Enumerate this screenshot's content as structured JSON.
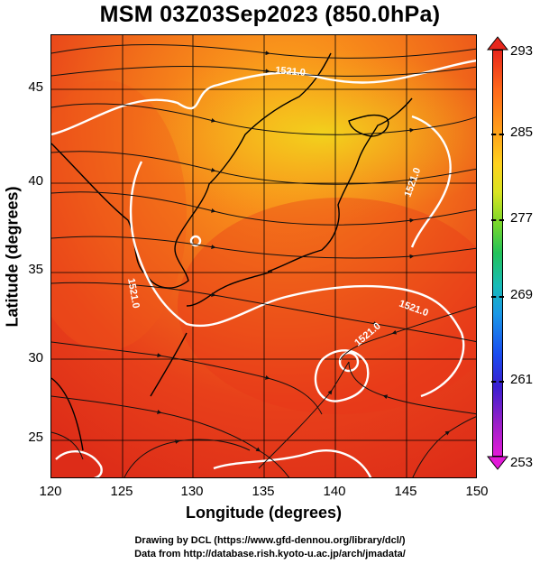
{
  "title": "MSM 03Z03Sep2023 (850.0hPa)",
  "axes": {
    "xlabel": "Longitude (degrees)",
    "ylabel": "Latitude  (degrees)",
    "xticks": [
      "120",
      "125",
      "130",
      "135",
      "140",
      "145",
      "150"
    ],
    "yticks": [
      "45",
      "40",
      "35",
      "30",
      "25"
    ]
  },
  "map": {
    "lon_range": [
      120,
      150
    ],
    "lat_range": [
      22.4,
      47.6
    ],
    "contour_labels": [
      "1521.0",
      "1521.0",
      "1521.0",
      "1521.0",
      "1521.0"
    ],
    "field": "temperature (K), color shaded",
    "overlay": "wind streamlines"
  },
  "colorbar": {
    "ticks": [
      "293",
      "285",
      "277",
      "269",
      "261",
      "253"
    ],
    "range": [
      253,
      293
    ],
    "colors": [
      "#e8271c",
      "#ffa01a",
      "#ffd21e",
      "#74d62c",
      "#22c25a",
      "#18bcb8",
      "#1a98e6",
      "#1a4cf0",
      "#9a20c8",
      "#e21ad8"
    ]
  },
  "credits": {
    "drawing": "Drawing by DCL (https://www.gfd-dennou.org/library/dcl/)",
    "data": "Data from http://database.rish.kyoto-u.ac.jp/arch/jmadata/"
  }
}
